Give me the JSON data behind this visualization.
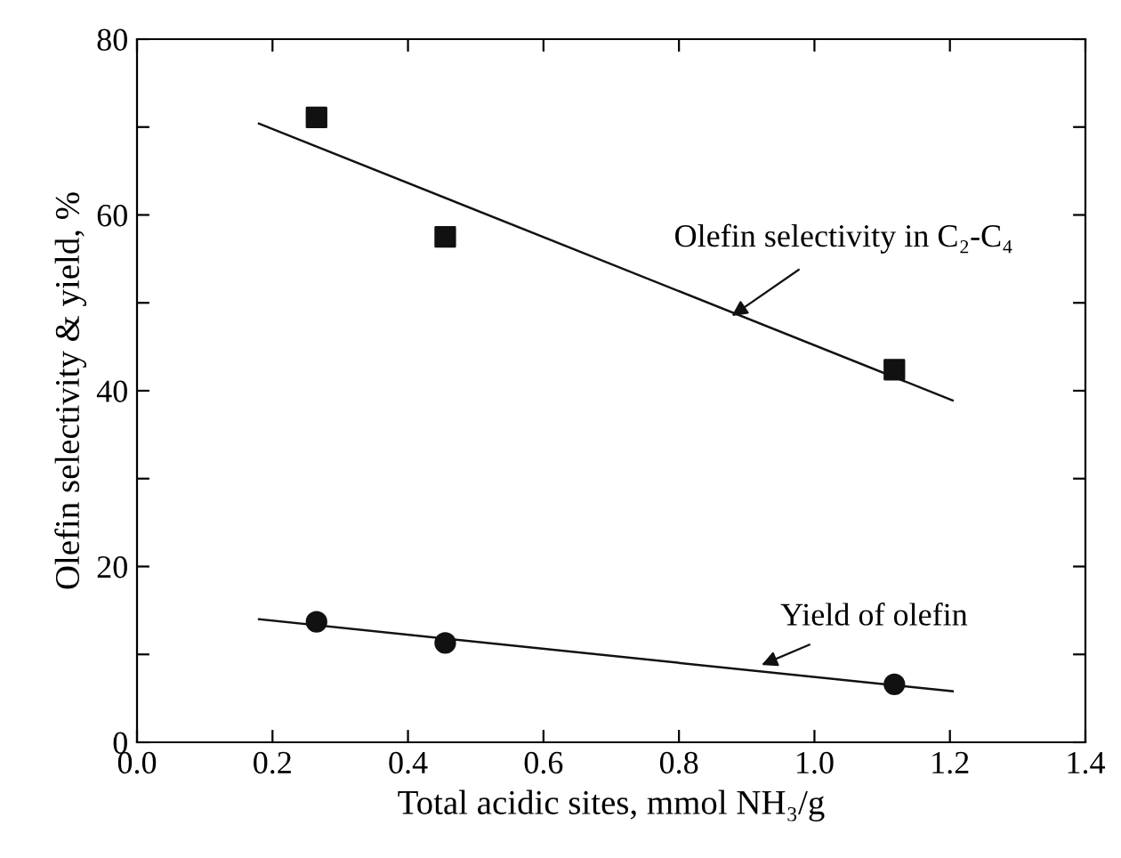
{
  "chart_data": {
    "type": "scatter",
    "xlabel": "Total acidic sites, mmol NH₃/g",
    "ylabel": "Olefin selectivity & yield, %",
    "xlim": [
      0,
      1.4
    ],
    "xticks": [
      {
        "value": 0,
        "label": "0.0"
      },
      0.2,
      0.4,
      0.6,
      0.8,
      {
        "value": 1,
        "label": "1.0"
      },
      1.2,
      1.4
    ],
    "ylim": [
      0,
      80
    ],
    "yticks": [
      0,
      {
        "value": 10,
        "label": null
      },
      20,
      {
        "value": 30,
        "label": null
      },
      40,
      {
        "value": 50,
        "label": null
      },
      60,
      {
        "value": 70,
        "label": null
      },
      80
    ],
    "grid": false,
    "legend": false,
    "series": [
      {
        "marker": "square",
        "color": "#111111",
        "x": [
          0.265,
          0.455,
          1.118
        ],
        "values": [
          71.1,
          57.5,
          42.4
        ]
      },
      {
        "marker": "circle",
        "color": "#111111",
        "x": [
          0.265,
          0.455,
          1.118
        ],
        "values": [
          13.7,
          11.3,
          6.6
        ]
      },
      {
        "type": "line",
        "marker": "none",
        "line_style": "solid",
        "color": "#111111",
        "x": [
          0.18,
          1.204
        ],
        "values": [
          70.4,
          38.9
        ]
      },
      {
        "type": "line",
        "marker": "none",
        "line_style": "solid",
        "color": "#111111",
        "x": [
          0.18,
          1.204
        ],
        "values": [
          14.0,
          5.8
        ]
      }
    ],
    "annotations": [
      {
        "text": "Olefin selectivity in C₂-C₄",
        "x": 0.878,
        "y": 48.5
      },
      {
        "text": "Yield of olefin",
        "x": 0.922,
        "y": 8.8
      }
    ]
  }
}
